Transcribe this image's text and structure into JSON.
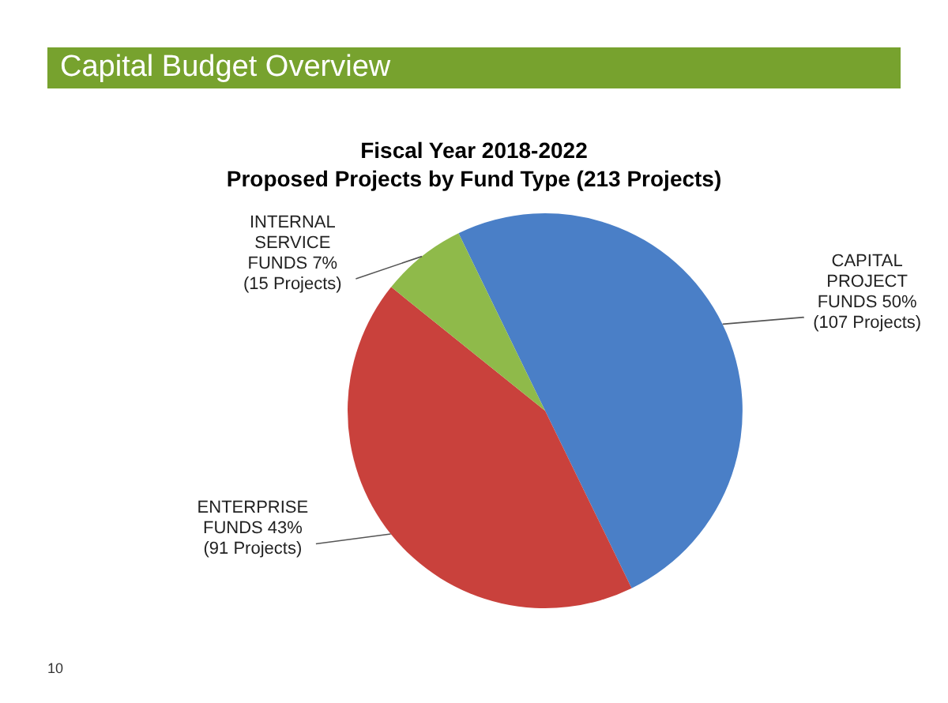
{
  "chart_data": {
    "type": "pie",
    "title": "Fiscal Year 2018-2022",
    "subtitle": "Proposed Projects by Fund Type (213 Projects)",
    "annotations": [
      "Capital Budget Overview",
      "10"
    ],
    "categories": [
      "CAPITAL PROJECT FUNDS",
      "ENTERPRISE FUNDS",
      "INTERNAL SERVICE FUNDS"
    ],
    "values": [
      50,
      43,
      7
    ],
    "colors": [
      "#4a7fc7",
      "#c9413c",
      "#8fba4a"
    ],
    "value_labels": [
      "50% (107 Projects)",
      "43% (91 Projects)",
      "7% (15 Projects)"
    ],
    "legend": false
  }
}
